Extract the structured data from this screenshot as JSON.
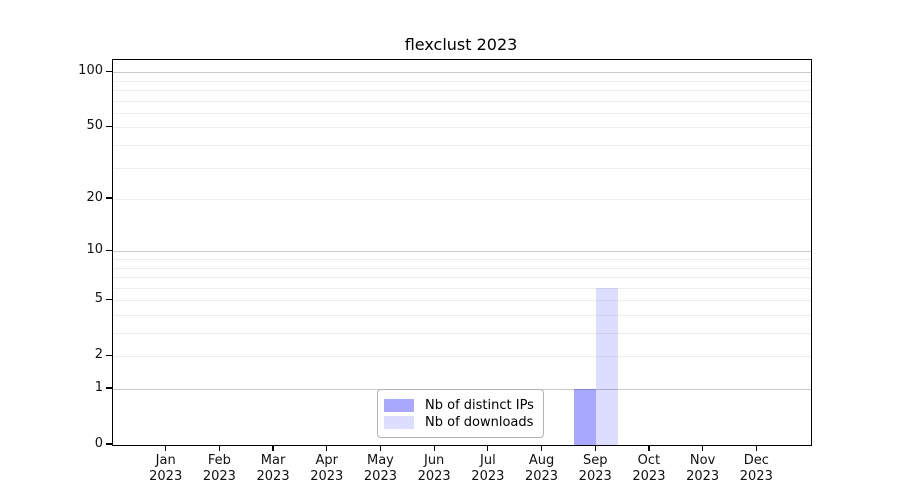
{
  "title": "flexclust 2023",
  "chart_data": {
    "type": "bar",
    "title": "flexclust 2023",
    "categories": [
      "Jan",
      "Feb",
      "Mar",
      "Apr",
      "May",
      "Jun",
      "Jul",
      "Aug",
      "Sep",
      "Oct",
      "Nov",
      "Dec"
    ],
    "category_year": "2023",
    "series": [
      {
        "name": "Nb of distinct IPs",
        "color": "rgba(0,0,255,0.34)",
        "color_flat": "#a9a9f7",
        "values": [
          0,
          0,
          0,
          0,
          0,
          0,
          0,
          0,
          1,
          0,
          0,
          0
        ]
      },
      {
        "name": "Nb of downloads",
        "color": "rgba(0,0,255,0.135)",
        "color_flat": "#dcdcf9",
        "values": [
          0,
          0,
          0,
          0,
          0,
          0,
          0,
          0,
          6,
          0,
          0,
          0
        ]
      }
    ],
    "xlabel": "",
    "ylabel": "",
    "yscale": "log1p",
    "ylim": [
      0,
      116.5
    ],
    "yticks": [
      0,
      1,
      2,
      5,
      10,
      20,
      50,
      100
    ],
    "major_gridlines": [
      1,
      10,
      100
    ],
    "minor_gridlines": [
      2,
      3,
      4,
      5,
      6,
      7,
      8,
      9,
      20,
      30,
      40,
      50,
      60,
      70,
      80,
      90
    ],
    "grid": "horizontal",
    "legend_position": "bottom-center",
    "axis_color": "#000000",
    "major_grid_color": "#c9c9c9",
    "minor_grid_color": "#ececec"
  }
}
